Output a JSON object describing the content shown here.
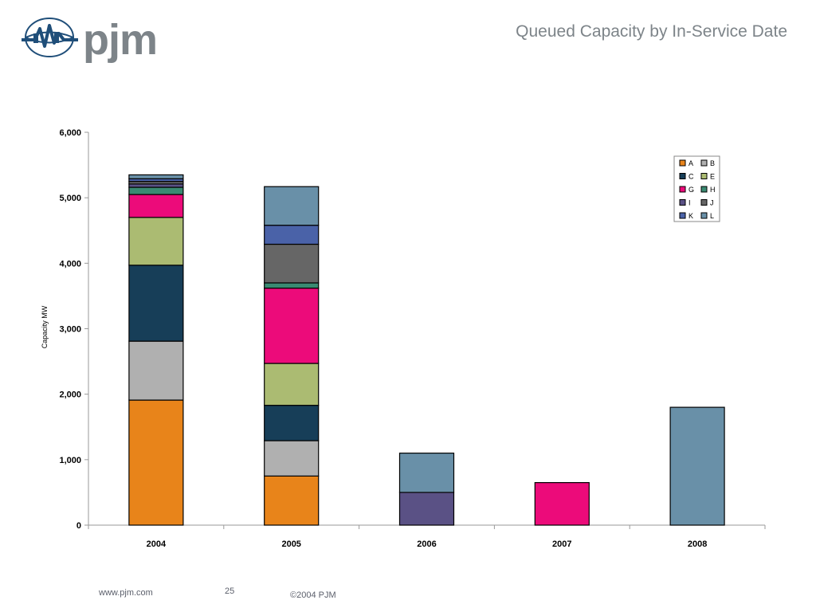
{
  "header": {
    "logo_text": "pjm",
    "title": "Queued Capacity by In-Service Date"
  },
  "footer": {
    "website": "www.pjm.com",
    "page_number": "25",
    "copyright": "©2004 PJM"
  },
  "colors": {
    "title_gray": "#7d8489",
    "logo_blue": "#1f4e79"
  },
  "chart_data": {
    "type": "bar",
    "stacked": true,
    "title": "",
    "xlabel": "",
    "ylabel": "Capacity MW",
    "ylim": [
      0,
      6000
    ],
    "yticks": [
      0,
      1000,
      2000,
      3000,
      4000,
      5000,
      6000
    ],
    "ytick_labels": [
      "0",
      "1,000",
      "2,000",
      "3,000",
      "4,000",
      "5,000",
      "6,000"
    ],
    "categories": [
      "2004",
      "2005",
      "2006",
      "2007",
      "2008"
    ],
    "legend_position": "top-right",
    "legend_order": [
      "A",
      "B",
      "C",
      "E",
      "G",
      "H",
      "I",
      "J",
      "K",
      "L"
    ],
    "series": [
      {
        "name": "A",
        "color": "#e8841a",
        "values": [
          1910,
          750,
          0,
          0,
          0
        ]
      },
      {
        "name": "B",
        "color": "#b0b0b0",
        "values": [
          900,
          540,
          0,
          0,
          0
        ]
      },
      {
        "name": "C",
        "color": "#173e58",
        "values": [
          1160,
          540,
          0,
          0,
          0
        ]
      },
      {
        "name": "E",
        "color": "#abbb72",
        "values": [
          730,
          640,
          0,
          0,
          0
        ]
      },
      {
        "name": "G",
        "color": "#ec0b7a",
        "values": [
          350,
          1150,
          0,
          650,
          0
        ]
      },
      {
        "name": "H",
        "color": "#3a8a72",
        "values": [
          110,
          80,
          0,
          0,
          0
        ]
      },
      {
        "name": "I",
        "color": "#5a5185",
        "values": [
          50,
          0,
          500,
          0,
          0
        ]
      },
      {
        "name": "J",
        "color": "#666666",
        "values": [
          40,
          590,
          0,
          0,
          0
        ]
      },
      {
        "name": "K",
        "color": "#4a62a8",
        "values": [
          40,
          290,
          0,
          0,
          0
        ]
      },
      {
        "name": "L",
        "color": "#6990a8",
        "values": [
          60,
          590,
          600,
          0,
          1800
        ]
      }
    ]
  }
}
